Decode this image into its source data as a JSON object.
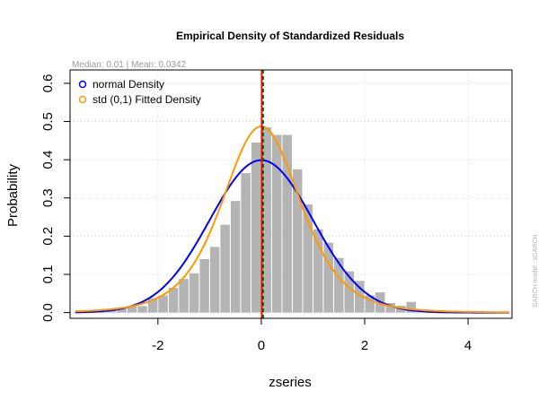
{
  "chart_data": {
    "type": "bar",
    "title": "Empirical Density of Standardized Residuals",
    "subtitle": "Median:  0.01 | Mean:  0.0342",
    "xlabel": "zseries",
    "ylabel": "Probability",
    "side_note": "GARCH model :  sGARCH",
    "xlim": [
      -3.7,
      4.85
    ],
    "ylim": [
      -0.015,
      0.635
    ],
    "x_ticks": [
      -2,
      0,
      2,
      4
    ],
    "x_tick_labels": [
      "-2",
      "0",
      "2",
      "4"
    ],
    "y_ticks": [
      0.0,
      0.1,
      0.2,
      0.3,
      0.4,
      0.5,
      0.6
    ],
    "y_tick_labels": [
      "0.0",
      "0.1",
      "0.2",
      "0.3",
      "0.4",
      "0.5",
      "0.6"
    ],
    "grid": true,
    "bin_width": 0.2,
    "histogram": {
      "color": "#b4b4b4",
      "bin_starts": [
        -3.6,
        -3.4,
        -3.2,
        -3.0,
        -2.8,
        -2.6,
        -2.4,
        -2.2,
        -2.0,
        -1.8,
        -1.6,
        -1.4,
        -1.2,
        -1.0,
        -0.8,
        -0.6,
        -0.4,
        -0.2,
        0.0,
        0.2,
        0.4,
        0.6,
        0.8,
        1.0,
        1.2,
        1.4,
        1.6,
        1.8,
        2.0,
        2.2,
        2.4,
        2.6,
        2.8,
        3.0,
        3.2,
        3.4,
        3.6,
        3.8,
        4.0,
        4.2,
        4.4,
        4.6
      ],
      "density": [
        0.003,
        0.003,
        0.005,
        0.008,
        0.01,
        0.017,
        0.017,
        0.038,
        0.045,
        0.065,
        0.088,
        0.103,
        0.14,
        0.172,
        0.23,
        0.292,
        0.365,
        0.445,
        0.485,
        0.465,
        0.465,
        0.375,
        0.283,
        0.218,
        0.183,
        0.143,
        0.108,
        0.083,
        0.045,
        0.053,
        0.025,
        0.018,
        0.028,
        0.003,
        0.003,
        0.002,
        0.002,
        0.002,
        0.002,
        0.002,
        0.002,
        0.002
      ]
    },
    "series": [
      {
        "name": "normal Density",
        "color": "#0000ff",
        "distribution": "normal",
        "mean": 0.0,
        "sd": 1.0
      },
      {
        "name": "std (0,1) Fitted Density",
        "color": "#ff9900",
        "distribution": "std",
        "mean": 0.0,
        "sd": 1.0,
        "shape": 5.1
      }
    ],
    "vlines": [
      {
        "x": 0.01,
        "color": "#ff0000",
        "label": "Median"
      },
      {
        "x": 0.0342,
        "color": "#006400",
        "label": "Mean",
        "style": "dashed"
      }
    ],
    "legend_position": "top-left"
  }
}
